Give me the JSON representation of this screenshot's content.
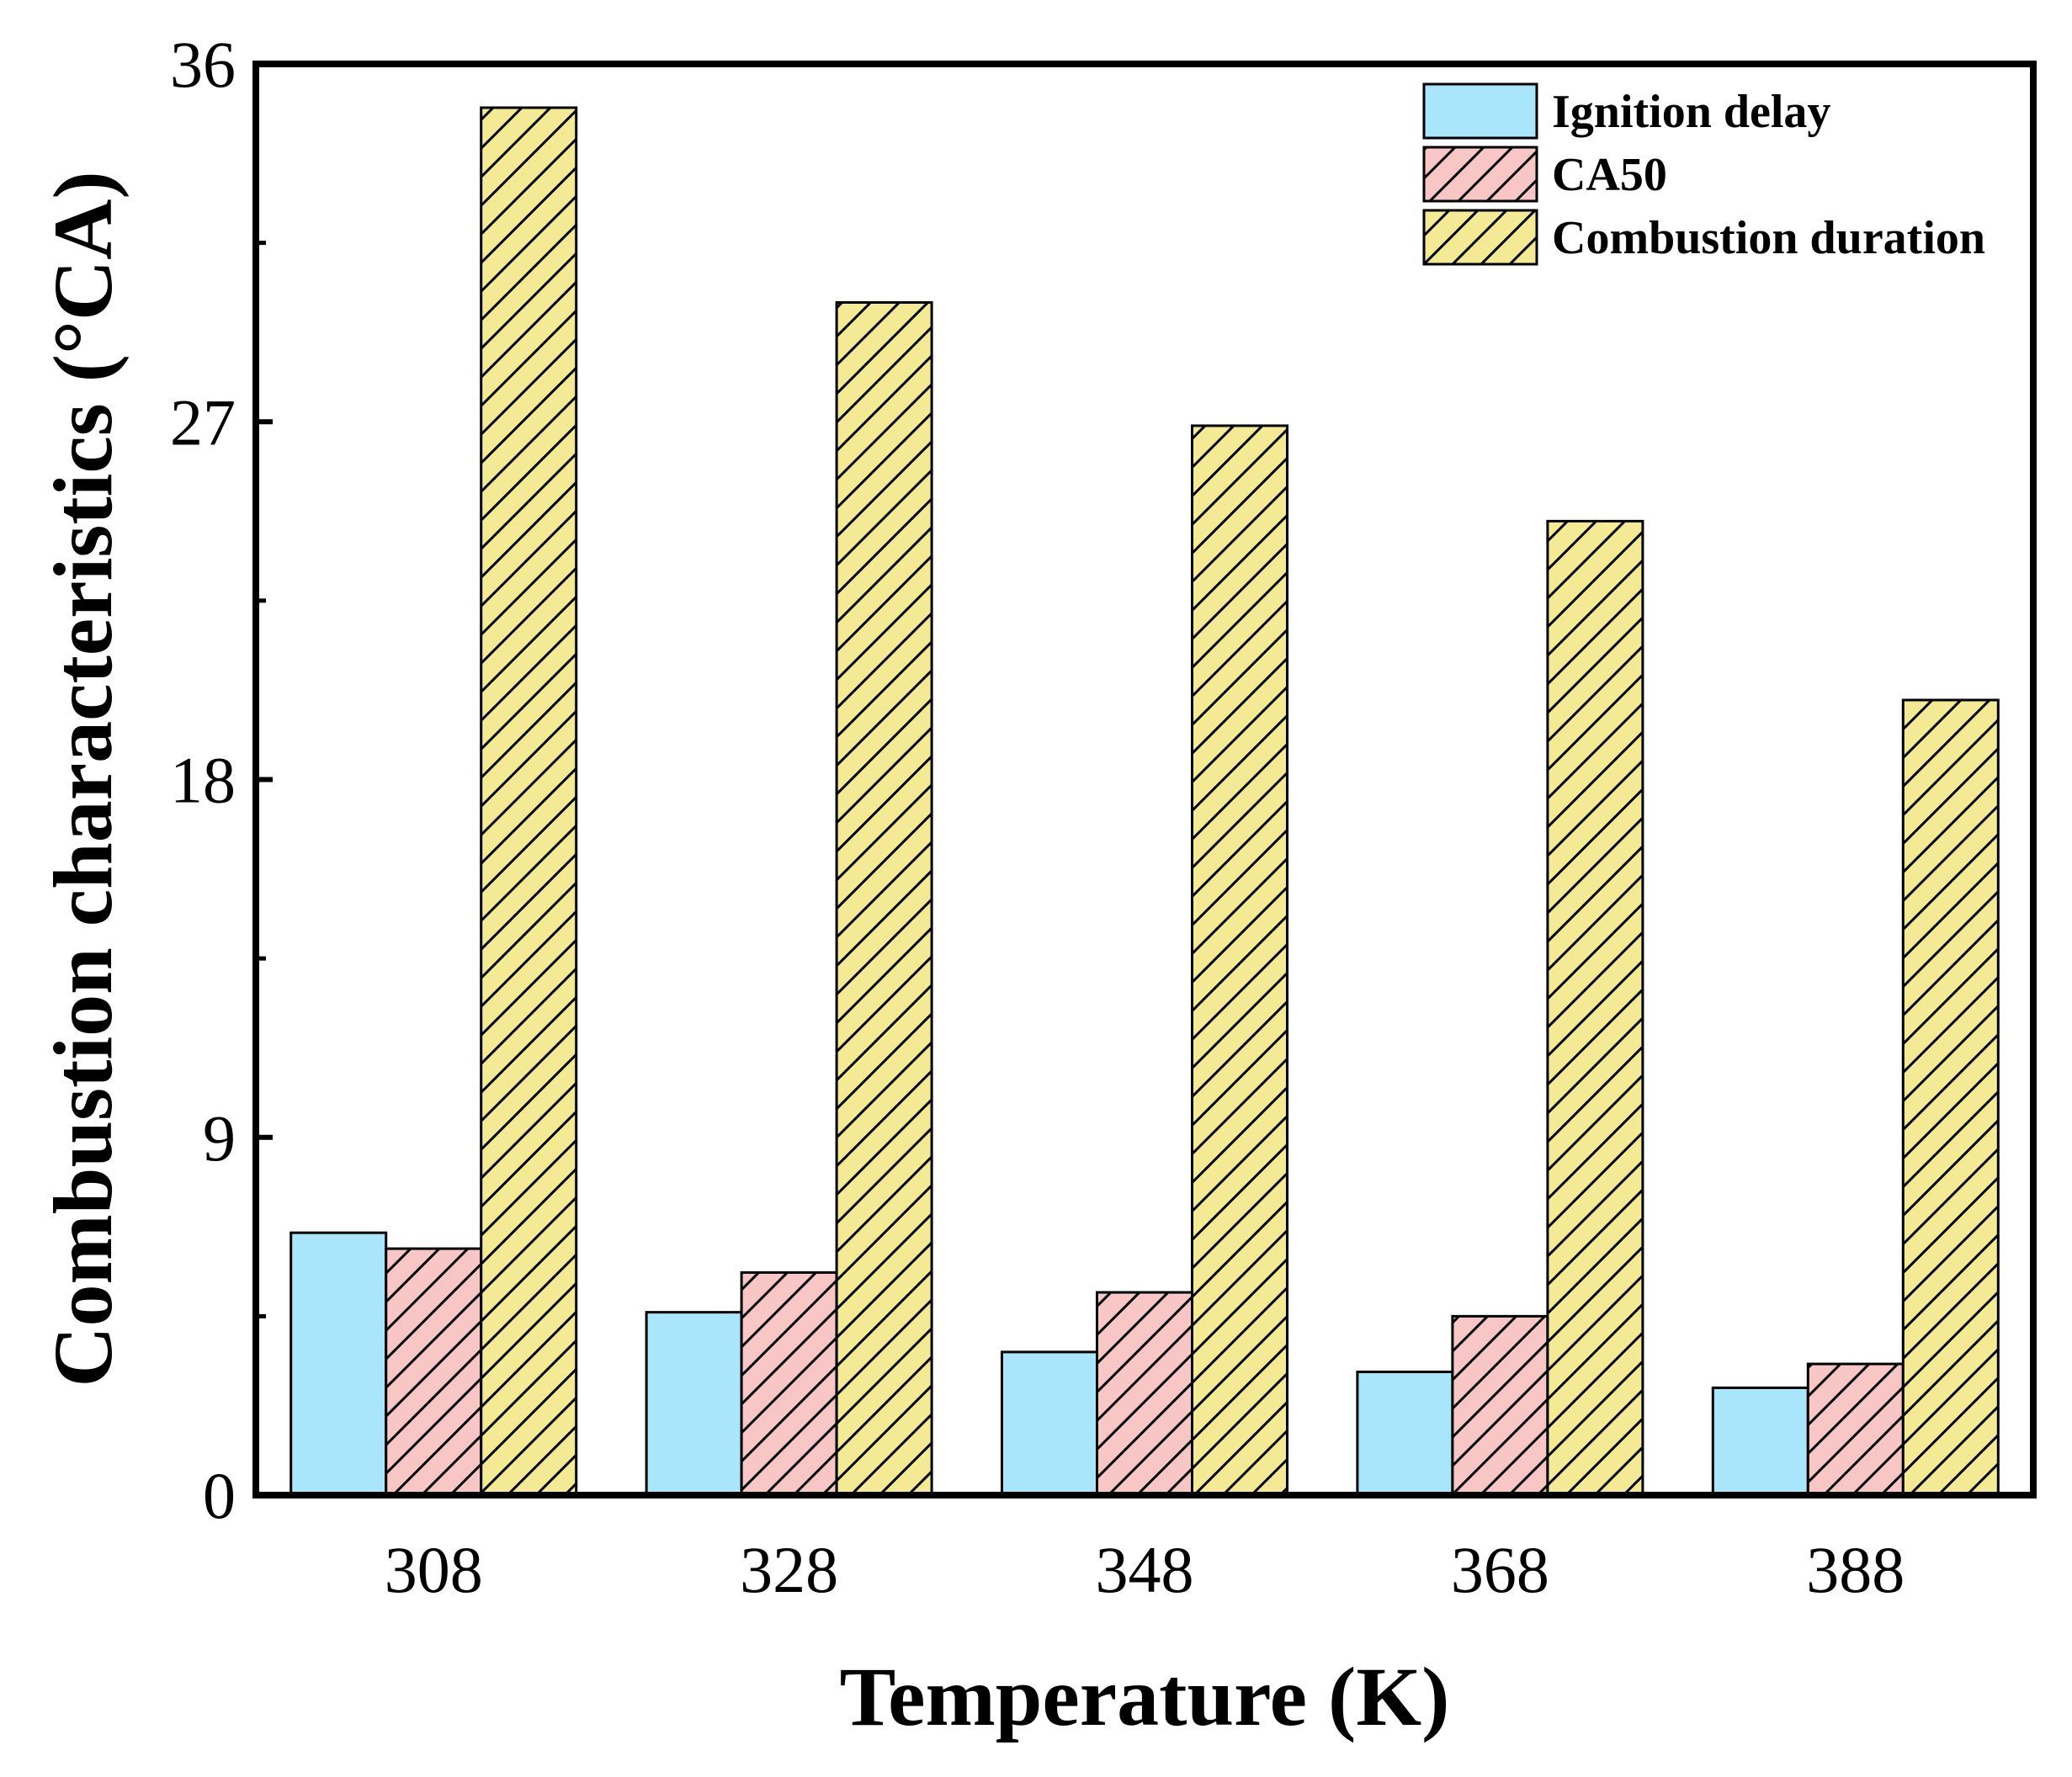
{
  "chart_data": {
    "type": "bar",
    "title": "",
    "xlabel": "Temperature (K)",
    "ylabel": "Combustion characteristics (°CA)",
    "categories": [
      "308",
      "328",
      "348",
      "368",
      "388"
    ],
    "ylim": [
      0,
      36
    ],
    "yticks": [
      0,
      9,
      18,
      27,
      36
    ],
    "y_minor_step": 4.5,
    "series": [
      {
        "name": "Ignition delay",
        "values": [
          6.6,
          4.6,
          3.6,
          3.1,
          2.7
        ],
        "color": "#a9e6fb",
        "pattern": "none"
      },
      {
        "name": "CA50",
        "values": [
          6.2,
          5.6,
          5.1,
          4.5,
          3.3
        ],
        "color": "#f9c6c6",
        "pattern": "hatch"
      },
      {
        "name": "Combustion duration",
        "values": [
          34.9,
          30.0,
          26.9,
          24.5,
          20.0
        ],
        "color": "#f4ea95",
        "pattern": "hatch"
      }
    ],
    "legend_position": "top-right",
    "grid": false
  },
  "colors": {
    "axis": "#000000",
    "hatch": "#000000"
  }
}
